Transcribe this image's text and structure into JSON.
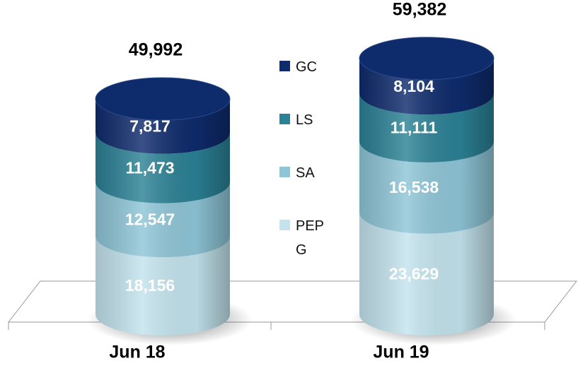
{
  "chart_data": {
    "type": "stacked-cylinder",
    "categories": [
      "Jun 18",
      "Jun 19"
    ],
    "series": [
      {
        "name": "PEPG",
        "color": "#c3e3ed",
        "values": [
          18156,
          23629
        ],
        "value_labels": [
          "18,156",
          "23,629"
        ]
      },
      {
        "name": "SA",
        "color": "#8ec5d7",
        "values": [
          12547,
          16538
        ],
        "value_labels": [
          "12,547",
          "16,538"
        ]
      },
      {
        "name": "LS",
        "color": "#2b8195",
        "values": [
          11473,
          11111
        ],
        "value_labels": [
          "11,473",
          "11,111"
        ]
      },
      {
        "name": "GC",
        "color": "#0e2b6c",
        "values": [
          7817,
          8104
        ],
        "value_labels": [
          "7,817",
          "8,104"
        ]
      }
    ],
    "totals": {
      "values": [
        49992,
        59382
      ],
      "value_labels": [
        "49,992",
        "59,382"
      ]
    }
  }
}
